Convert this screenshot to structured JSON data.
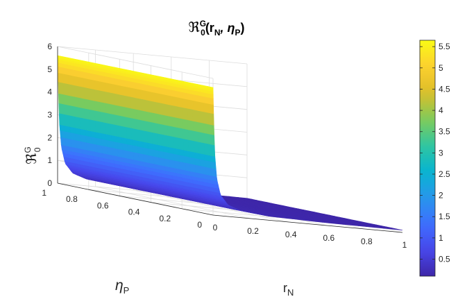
{
  "chart_data": {
    "type": "surface",
    "title_main": "ℜ",
    "title_sup": "G",
    "title_sub": "0",
    "title_args": "(r",
    "title_args_sub": "N",
    "title_args_mid": ",  η",
    "title_args_sub2": "P",
    "title_args_end": ")",
    "xlabel_main": "r",
    "xlabel_sub": "N",
    "ylabel_main": "η",
    "ylabel_sub": "P",
    "zlabel_main": "ℜ",
    "zlabel_sup": "G",
    "zlabel_sub": "0",
    "x_ticks": [
      "0",
      "0.2",
      "0.4",
      "0.6",
      "0.8",
      "1"
    ],
    "y_ticks": [
      "0",
      "0.2",
      "0.4",
      "0.6",
      "0.8",
      "1"
    ],
    "z_ticks": [
      "0",
      "1",
      "2",
      "3",
      "4",
      "5",
      "6"
    ],
    "xlim": [
      0,
      1
    ],
    "ylim": [
      0,
      1
    ],
    "zlim": [
      0,
      6
    ],
    "grid": true,
    "colormap": "parula",
    "colorbar": {
      "min": 0.1,
      "max": 5.65,
      "ticks": [
        "0.5",
        "1",
        "1.5",
        "2",
        "2.5",
        "3",
        "3.5",
        "4",
        "4.5",
        "5",
        "5.5"
      ]
    },
    "surface": {
      "description_formula": "z approx 0.09 / (r_N + 0.015) along the r_N = 0 ridge, decaying to ~0.1 for larger r_N; nearly independent of eta_P",
      "edge_at_rN_0": [
        {
          "eta_P": 0.0,
          "z": 5.6
        },
        {
          "eta_P": 1.0,
          "z": 5.6
        }
      ],
      "profile_rN": [
        0,
        0.002,
        0.005,
        0.01,
        0.02,
        0.04,
        0.08,
        0.15,
        0.3,
        0.6,
        1.0
      ],
      "profile_z": [
        5.6,
        5.0,
        3.8,
        2.6,
        1.6,
        0.9,
        0.5,
        0.3,
        0.17,
        0.12,
        0.1
      ]
    }
  }
}
